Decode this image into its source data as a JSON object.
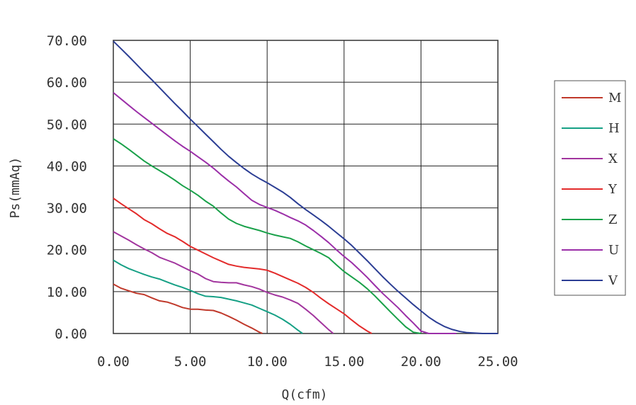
{
  "chart_data": {
    "type": "line",
    "xlabel": "Q(cfm)",
    "ylabel": "Ps(mmAq)",
    "xlim": [
      0,
      25
    ],
    "ylim": [
      0,
      70
    ],
    "xticks": [
      "0.00",
      "5.00",
      "10.00",
      "15.00",
      "20.00",
      "25.00"
    ],
    "yticks": [
      "0.00",
      "10.00",
      "20.00",
      "30.00",
      "40.00",
      "50.00",
      "60.00",
      "70.00"
    ],
    "grid": true,
    "legend_position": "right",
    "series": [
      {
        "name": "M",
        "color": "#c0392b",
        "x": [
          0,
          0.5,
          1,
          1.5,
          2,
          2.5,
          3,
          3.5,
          4,
          4.5,
          5,
          5.5,
          6,
          6.5,
          7,
          7.5,
          8,
          8.5,
          9,
          9.5,
          9.7
        ],
        "y": [
          11.8,
          10.8,
          10.2,
          9.6,
          9.3,
          8.5,
          7.8,
          7.5,
          6.9,
          6.2,
          5.8,
          5.8,
          5.6,
          5.5,
          4.9,
          4.1,
          3.2,
          2.2,
          1.3,
          0.3,
          0
        ]
      },
      {
        "name": "H",
        "color": "#16a085",
        "x": [
          0,
          0.5,
          1,
          1.5,
          2,
          2.5,
          3,
          3.5,
          4,
          4.5,
          5,
          5.5,
          6,
          6.5,
          7,
          7.5,
          8,
          8.5,
          9,
          9.5,
          10,
          10.5,
          11,
          11.5,
          12,
          12.3
        ],
        "y": [
          17.5,
          16.4,
          15.5,
          14.8,
          14.1,
          13.5,
          13,
          12.3,
          11.6,
          11,
          10.3,
          9.5,
          8.9,
          8.8,
          8.6,
          8.2,
          7.8,
          7.3,
          6.8,
          6,
          5.2,
          4.4,
          3.4,
          2.2,
          0.8,
          0
        ]
      },
      {
        "name": "X",
        "color": "#a2359e",
        "x": [
          0,
          0.5,
          1,
          1.5,
          2,
          2.5,
          3,
          3.5,
          4,
          4.5,
          5,
          5.5,
          6,
          6.5,
          7,
          7.5,
          8,
          8.5,
          9,
          9.5,
          10,
          10.5,
          11,
          11.5,
          12,
          12.5,
          13,
          13.5,
          14,
          14.3
        ],
        "y": [
          24.3,
          23.3,
          22.3,
          21.2,
          20.2,
          19.3,
          18.2,
          17.5,
          16.8,
          15.9,
          15,
          14.2,
          13.1,
          12.4,
          12.2,
          12.1,
          12.1,
          11.6,
          11.2,
          10.6,
          9.8,
          9.2,
          8.7,
          8,
          7.2,
          5.8,
          4.3,
          2.6,
          0.9,
          0
        ]
      },
      {
        "name": "Y",
        "color": "#e32b2b",
        "x": [
          0,
          0.5,
          1,
          1.5,
          2,
          2.5,
          3,
          3.5,
          4,
          4.5,
          5,
          5.5,
          6,
          6.5,
          7,
          7.5,
          8,
          8.5,
          9,
          9.5,
          10,
          10.5,
          11,
          11.5,
          12,
          12.5,
          13,
          13.5,
          14,
          14.5,
          15,
          15.5,
          16,
          16.5,
          16.8
        ],
        "y": [
          32.3,
          31,
          29.8,
          28.6,
          27.2,
          26.2,
          25,
          23.9,
          23.1,
          22,
          20.8,
          19.9,
          19,
          18.1,
          17.3,
          16.5,
          16.1,
          15.8,
          15.6,
          15.4,
          15.1,
          14.4,
          13.6,
          12.8,
          12,
          11,
          9.8,
          8.4,
          7.1,
          5.9,
          4.7,
          3.2,
          1.8,
          0.6,
          0
        ]
      },
      {
        "name": "Z",
        "color": "#1aa14a",
        "x": [
          0,
          0.5,
          1,
          1.5,
          2,
          2.5,
          3,
          3.5,
          4,
          4.5,
          5,
          5.5,
          6,
          6.5,
          7,
          7.5,
          8,
          8.5,
          9,
          9.5,
          10,
          10.5,
          11,
          11.5,
          12,
          12.5,
          13,
          13.5,
          14,
          14.5,
          15,
          15.5,
          16,
          16.5,
          17,
          17.5,
          18,
          18.5,
          19,
          19.5,
          20
        ],
        "y": [
          46.5,
          45.3,
          44,
          42.6,
          41.2,
          40,
          38.9,
          37.8,
          36.6,
          35.3,
          34.2,
          33,
          31.6,
          30.4,
          28.8,
          27.3,
          26.3,
          25.6,
          25.1,
          24.6,
          24,
          23.5,
          23.1,
          22.7,
          21.9,
          20.9,
          20,
          19.1,
          18.1,
          16.4,
          14.8,
          13.5,
          12.2,
          10.7,
          9,
          7.1,
          5.2,
          3.4,
          1.6,
          0.3,
          0
        ]
      },
      {
        "name": "U",
        "color": "#9b2fa8",
        "x": [
          0,
          0.5,
          1,
          1.5,
          2,
          2.5,
          3,
          3.5,
          4,
          4.5,
          5,
          5.5,
          6,
          6.5,
          7,
          7.5,
          8,
          8.5,
          9,
          9.5,
          10,
          10.5,
          11,
          11.5,
          12,
          12.5,
          13,
          13.5,
          14,
          14.5,
          15,
          15.5,
          16,
          16.5,
          17,
          17.5,
          18,
          18.5,
          19,
          19.5,
          20,
          20.5,
          21,
          21.5,
          22,
          22.3
        ],
        "y": [
          57.5,
          56,
          54.5,
          53,
          51.6,
          50.2,
          48.8,
          47.4,
          46,
          44.7,
          43.5,
          42.2,
          40.9,
          39.5,
          37.9,
          36.4,
          35,
          33.4,
          31.8,
          30.8,
          30.1,
          29.4,
          28.6,
          27.7,
          26.9,
          25.9,
          24.6,
          23.2,
          21.7,
          20,
          18.4,
          16.9,
          15.2,
          13.4,
          11.5,
          9.6,
          7.9,
          6.2,
          4.3,
          2.5,
          0.6,
          0,
          0,
          0,
          0,
          0
        ]
      },
      {
        "name": "V",
        "color": "#2c3e94",
        "x": [
          0,
          0.5,
          1,
          1.5,
          2,
          2.5,
          3,
          3.5,
          4,
          4.5,
          5,
          5.5,
          6,
          6.5,
          7,
          7.5,
          8,
          8.5,
          9,
          9.5,
          10,
          10.5,
          11,
          11.5,
          12,
          12.5,
          13,
          13.5,
          14,
          14.5,
          15,
          15.5,
          16,
          16.5,
          17,
          17.5,
          18,
          18.5,
          19,
          19.5,
          20,
          20.5,
          21,
          21.5,
          22,
          22.5,
          23,
          23.5,
          24,
          24.5,
          25
        ],
        "y": [
          69.8,
          68,
          66.2,
          64.3,
          62.4,
          60.6,
          58.7,
          56.8,
          54.9,
          53.1,
          51.2,
          49.4,
          47.6,
          45.8,
          44,
          42.3,
          40.8,
          39.4,
          38.1,
          37,
          36,
          34.9,
          33.8,
          32.5,
          31,
          29.6,
          28.3,
          27,
          25.6,
          24.1,
          22.6,
          21,
          19.2,
          17.4,
          15.5,
          13.6,
          11.8,
          10.1,
          8.5,
          6.9,
          5.4,
          3.9,
          2.7,
          1.7,
          1,
          0.5,
          0.2,
          0.1,
          0,
          0,
          0
        ]
      }
    ]
  }
}
